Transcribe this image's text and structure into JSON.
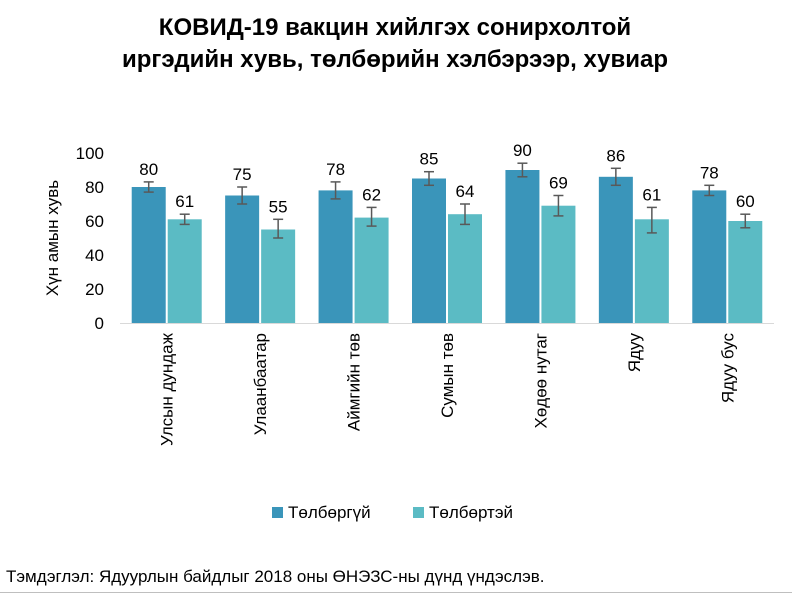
{
  "chart_data": {
    "type": "bar",
    "title": "КОВИД-19 вакцин хийлгэх сонирхолтой иргэдийн хувь, төлбөрийн хэлбэрээр, хувиар",
    "ylabel": "Хүн амын хувь",
    "xlabel": "",
    "ylim": [
      0,
      100
    ],
    "yticks": [
      0,
      20,
      40,
      60,
      80,
      100
    ],
    "grid": false,
    "legend_position": "bottom",
    "categories": [
      "Улсын дундаж",
      "Улаанбаатар",
      "Аймгийн төв",
      "Сумын төв",
      "Хөдөө нутаг",
      "Ядуу",
      "Ядуу бус"
    ],
    "series": [
      {
        "name": "Төлбөргүй",
        "color": "#3A95BA",
        "values": [
          80,
          75,
          78,
          85,
          90,
          86,
          78
        ],
        "error_low": [
          77,
          70,
          73,
          81,
          86,
          81,
          75
        ],
        "error_high": [
          83,
          80,
          83,
          89,
          94,
          91,
          81
        ]
      },
      {
        "name": "Төлбөртэй",
        "color": "#5BBBC4",
        "values": [
          61,
          55,
          62,
          64,
          69,
          61,
          60
        ],
        "error_low": [
          58,
          50,
          57,
          58,
          63,
          53,
          56
        ],
        "error_high": [
          64,
          61,
          68,
          70,
          75,
          68,
          64
        ]
      }
    ]
  },
  "footnote": "Тэмдэглэл: Ядуурлын байдлыг 2018 оны ӨНЭЗС-ны дүнд үндэслэв."
}
